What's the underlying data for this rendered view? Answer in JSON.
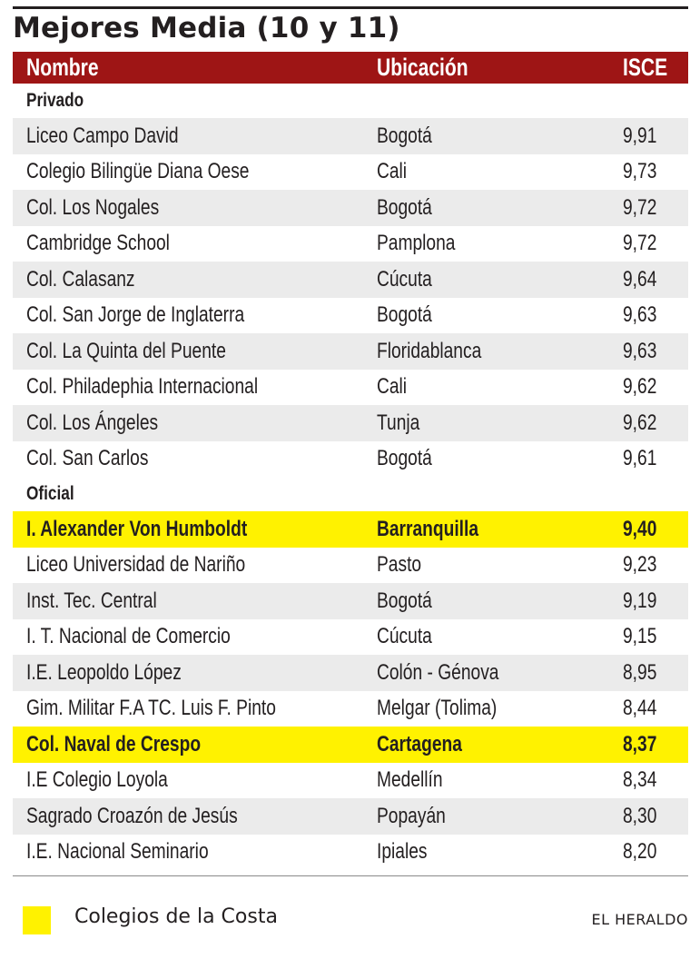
{
  "title": "Mejores Media (10 y 11)",
  "colors": {
    "header_bg": "#9e1515",
    "highlight": "#fff200",
    "stripe": "#ebebeb"
  },
  "headers": {
    "name": "Nombre",
    "location": "Ubicación",
    "score": "ISCE"
  },
  "sections": [
    {
      "label": "Privado",
      "rows": [
        {
          "name": "Liceo Campo David",
          "location": "Bogotá",
          "score": "9,91",
          "highlight": false
        },
        {
          "name": "Colegio Bilingüe Diana Oese",
          "location": "Cali",
          "score": "9,73",
          "highlight": false
        },
        {
          "name": "Col. Los Nogales",
          "location": "Bogotá",
          "score": "9,72",
          "highlight": false
        },
        {
          "name": "Cambridge School",
          "location": "Pamplona",
          "score": "9,72",
          "highlight": false
        },
        {
          "name": "Col. Calasanz",
          "location": "Cúcuta",
          "score": "9,64",
          "highlight": false
        },
        {
          "name": "Col. San Jorge de Inglaterra",
          "location": "Bogotá",
          "score": "9,63",
          "highlight": false
        },
        {
          "name": "Col. La Quinta del Puente",
          "location": "Floridablanca",
          "score": "9,63",
          "highlight": false
        },
        {
          "name": "Col. Philadephia Internacional",
          "location": "Cali",
          "score": "9,62",
          "highlight": false
        },
        {
          "name": "Col. Los Ángeles",
          "location": "Tunja",
          "score": "9,62",
          "highlight": false
        },
        {
          "name": "Col. San Carlos",
          "location": "Bogotá",
          "score": "9,61",
          "highlight": false
        }
      ]
    },
    {
      "label": "Oficial",
      "rows": [
        {
          "name": "I. Alexander Von Humboldt",
          "location": "Barranquilla",
          "score": "9,40",
          "highlight": true
        },
        {
          "name": "Liceo Universidad de Nariño",
          "location": "Pasto",
          "score": "9,23",
          "highlight": false
        },
        {
          "name": "Inst. Tec. Central",
          "location": "Bogotá",
          "score": "9,19",
          "highlight": false
        },
        {
          "name": "I. T. Nacional de Comercio",
          "location": "Cúcuta",
          "score": "9,15",
          "highlight": false
        },
        {
          "name": "I.E. Leopoldo López",
          "location": "Colón - Génova",
          "score": "8,95",
          "highlight": false
        },
        {
          "name": "Gim. Militar F.A TC. Luis F. Pinto",
          "location": "Melgar (Tolima)",
          "score": "8,44",
          "highlight": false
        },
        {
          "name": "Col. Naval de Crespo",
          "location": "Cartagena",
          "score": "8,37",
          "highlight": true
        },
        {
          "name": "I.E Colegio Loyola",
          "location": "Medellín",
          "score": "8,34",
          "highlight": false
        },
        {
          "name": "Sagrado Croazón de Jesús",
          "location": "Popayán",
          "score": "8,30",
          "highlight": false
        },
        {
          "name": "I.E. Nacional Seminario",
          "location": "Ipiales",
          "score": "8,20",
          "highlight": false
        }
      ]
    }
  ],
  "legend": {
    "label": "Colegios de la Costa"
  },
  "credit": "EL HERALDO"
}
